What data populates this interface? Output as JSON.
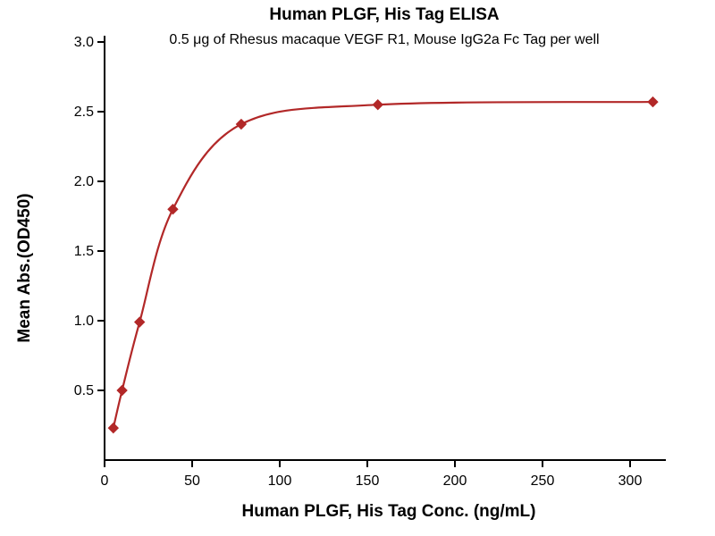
{
  "chart_data": {
    "type": "scatter",
    "title": "Human PLGF, His Tag ELISA",
    "subtitle": "0.5 μg of Rhesus macaque VEGF R1, Mouse IgG2a Fc Tag per well",
    "xlabel": "Human PLGF, His Tag Conc. (ng/mL)",
    "ylabel": "Mean Abs.(OD450)",
    "x": [
      5,
      10,
      20,
      39,
      78,
      156,
      313
    ],
    "y": [
      0.23,
      0.5,
      0.99,
      1.8,
      2.41,
      2.55,
      2.57
    ],
    "xlim": [
      0,
      320
    ],
    "ylim": [
      0,
      3.0
    ],
    "x_ticks": [
      0,
      50,
      100,
      150,
      200,
      250,
      300
    ],
    "y_ticks": [
      0.5,
      1.0,
      1.5,
      2.0,
      2.5,
      3.0
    ],
    "marker": "diamond",
    "curve": "smooth-through-points",
    "series_color": "#b22828",
    "axis_color": "#000000",
    "grid": false,
    "legend": null
  }
}
